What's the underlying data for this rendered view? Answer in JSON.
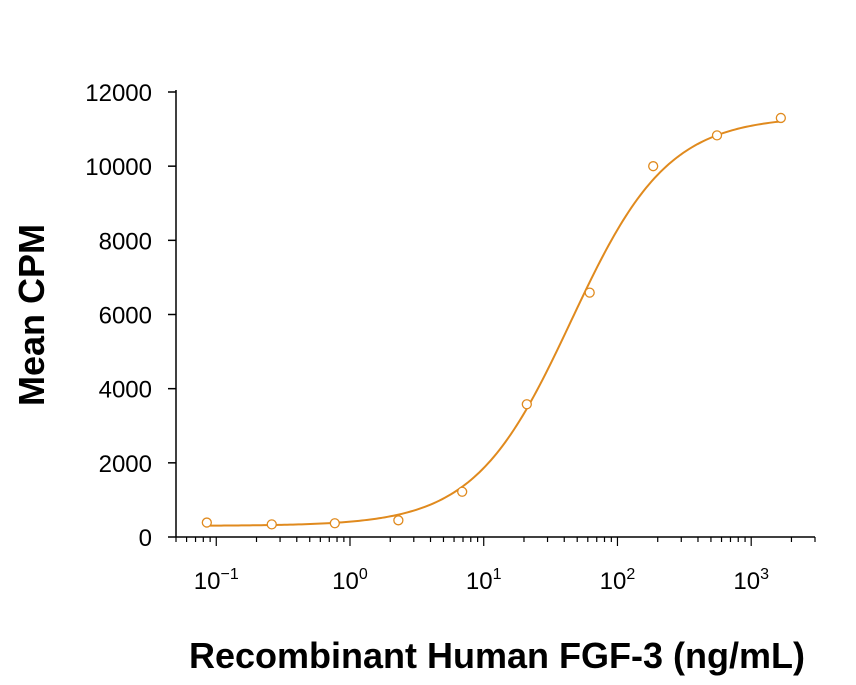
{
  "chart_data": {
    "type": "scatter",
    "xscale": "log",
    "xlabel": "Recombinant Human FGF-3 (ng/mL)",
    "ylabel": "Mean CPM",
    "xlim": [
      0.05,
      3000
    ],
    "ylim": [
      0,
      12000
    ],
    "grid": false,
    "legend": "none",
    "color": "#e08a1e",
    "yticks": [
      {
        "value": 0,
        "label": "0"
      },
      {
        "value": 2000,
        "label": "2000"
      },
      {
        "value": 4000,
        "label": "4000"
      },
      {
        "value": 6000,
        "label": "6000"
      },
      {
        "value": 8000,
        "label": "8000"
      },
      {
        "value": 10000,
        "label": "10000"
      },
      {
        "value": 12000,
        "label": "12000"
      }
    ],
    "xticks": [
      {
        "value": 0.1,
        "base": "10",
        "exp": "−1"
      },
      {
        "value": 1,
        "base": "10",
        "exp": "0"
      },
      {
        "value": 10,
        "base": "10",
        "exp": "1"
      },
      {
        "value": 100,
        "base": "10",
        "exp": "2"
      },
      {
        "value": 1000,
        "base": "10",
        "exp": "3"
      }
    ],
    "series": [
      {
        "x": [
          0.085,
          0.26,
          0.77,
          2.3,
          6.9,
          21,
          62,
          185,
          555,
          1666
        ],
        "y": [
          390,
          340,
          370,
          450,
          1220,
          3580,
          6590,
          10000,
          10830,
          11300
        ]
      }
    ],
    "fit": {
      "model": "4PL",
      "bottom": 300,
      "top": 11350,
      "ec50": 45,
      "hill": 1.2
    }
  }
}
